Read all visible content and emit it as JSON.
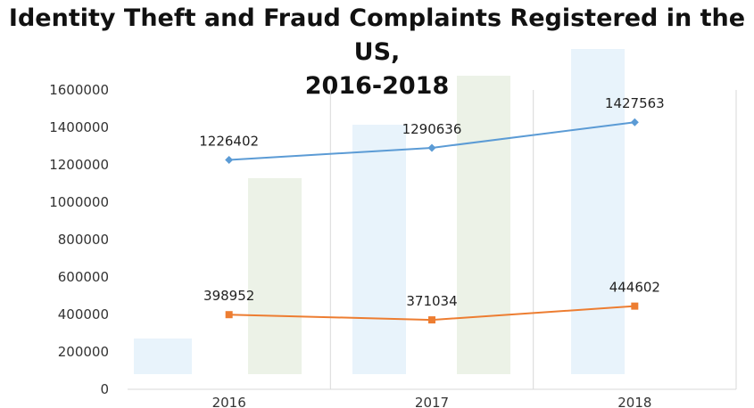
{
  "colors": {
    "series1": "#5b9bd5",
    "series2": "#ed7d31",
    "grid": "#d9d9d9",
    "watermark_blue": "#d6e9f8",
    "watermark_green": "#dde8d4"
  },
  "chart_data": {
    "type": "line",
    "title": "Identity Theft and Fraud Complaints Registered in the US, 2016-2018",
    "title_lines": [
      "Identity Theft and Fraud Complaints Registered in the US,",
      "2016-2018"
    ],
    "xlabel": "",
    "ylabel": "",
    "categories": [
      "2016",
      "2017",
      "2018"
    ],
    "ylim": [
      0,
      1600000
    ],
    "yticks": [
      0,
      200000,
      400000,
      600000,
      800000,
      1000000,
      1200000,
      1400000,
      1600000
    ],
    "grid": "vertical",
    "legend": "none",
    "series": [
      {
        "values": [
          1226402,
          1290636,
          1427563
        ],
        "marker": "diamond",
        "color_key": "series1"
      },
      {
        "values": [
          398952,
          371034,
          444602
        ],
        "marker": "square",
        "color_key": "series2"
      }
    ]
  }
}
